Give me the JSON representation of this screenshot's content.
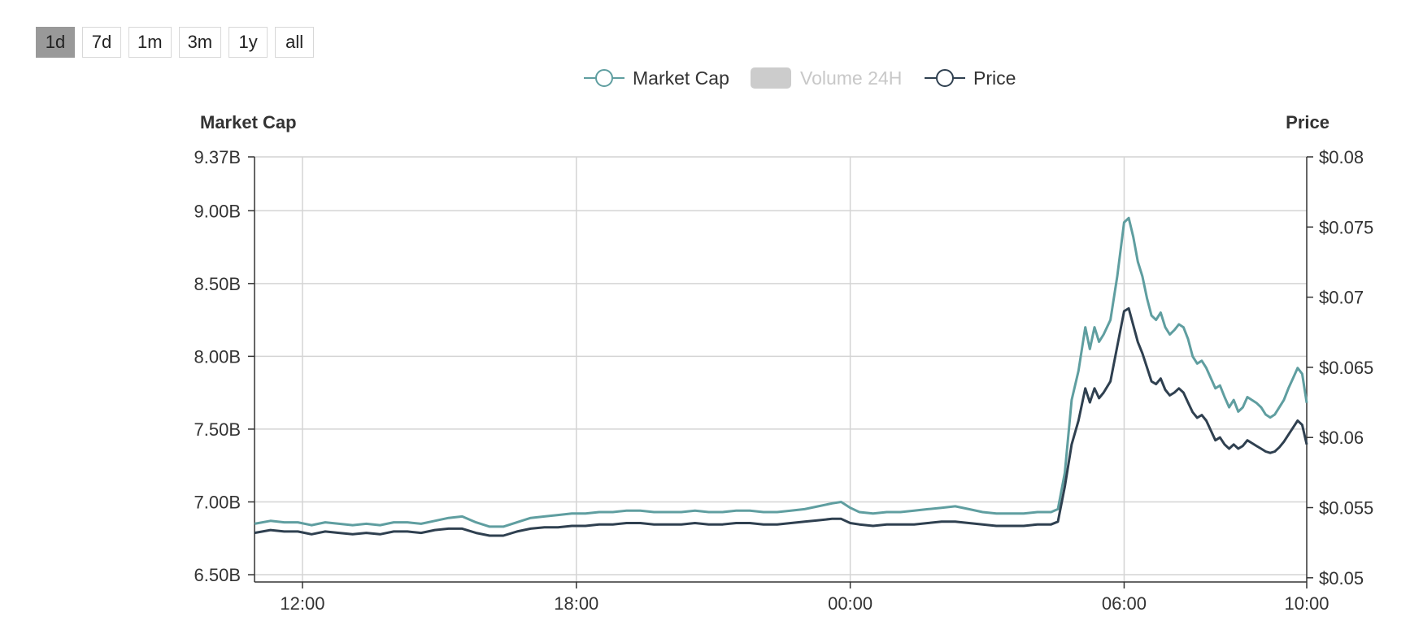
{
  "range_buttons": [
    {
      "label": "1d",
      "active": true
    },
    {
      "label": "7d",
      "active": false
    },
    {
      "label": "1m",
      "active": false
    },
    {
      "label": "3m",
      "active": false
    },
    {
      "label": "1y",
      "active": false
    },
    {
      "label": "all",
      "active": false
    }
  ],
  "chart_data": {
    "type": "line",
    "legend": {
      "placement": "top-center",
      "items": [
        {
          "name": "Market Cap",
          "color": "#5f9ea0",
          "marker": "circle",
          "enabled": true
        },
        {
          "name": "Volume 24H",
          "color": "#cccccc",
          "marker": "rect",
          "enabled": false
        },
        {
          "name": "Price",
          "color": "#2f4050",
          "marker": "circle",
          "enabled": true
        }
      ]
    },
    "y_left": {
      "title": "Market Cap",
      "ticks": [
        "9.37B",
        "9.00B",
        "8.50B",
        "8.00B",
        "7.50B",
        "7.00B",
        "6.50B"
      ],
      "tick_values": [
        9.37,
        9.0,
        8.5,
        8.0,
        7.5,
        7.0,
        6.5
      ],
      "range": [
        6.45,
        9.37
      ]
    },
    "y_right": {
      "title": "Price",
      "ticks": [
        "$0.08",
        "$0.075",
        "$0.07",
        "$0.065",
        "$0.06",
        "$0.055",
        "$0.05"
      ],
      "tick_values": [
        0.08,
        0.075,
        0.07,
        0.065,
        0.06,
        0.055,
        0.05
      ],
      "range": [
        0.0497,
        0.08
      ]
    },
    "x_axis": {
      "ticks": [
        "12:00",
        "18:00",
        "00:00",
        "06:00",
        "10:00"
      ],
      "tick_hours": [
        12,
        18,
        24,
        30,
        34
      ],
      "range_hours": [
        10.95,
        34
      ]
    },
    "grid": true,
    "series": [
      {
        "name": "Market Cap",
        "color": "#5f9ea0",
        "axis": "left",
        "points": [
          [
            10.95,
            6.85
          ],
          [
            11.3,
            6.87
          ],
          [
            11.6,
            6.86
          ],
          [
            11.9,
            6.86
          ],
          [
            12.2,
            6.84
          ],
          [
            12.5,
            6.86
          ],
          [
            12.8,
            6.85
          ],
          [
            13.1,
            6.84
          ],
          [
            13.4,
            6.85
          ],
          [
            13.7,
            6.84
          ],
          [
            14.0,
            6.86
          ],
          [
            14.3,
            6.86
          ],
          [
            14.6,
            6.85
          ],
          [
            14.9,
            6.87
          ],
          [
            15.2,
            6.89
          ],
          [
            15.5,
            6.9
          ],
          [
            15.8,
            6.86
          ],
          [
            16.1,
            6.83
          ],
          [
            16.4,
            6.83
          ],
          [
            16.7,
            6.86
          ],
          [
            17.0,
            6.89
          ],
          [
            17.3,
            6.9
          ],
          [
            17.6,
            6.91
          ],
          [
            17.9,
            6.92
          ],
          [
            18.2,
            6.92
          ],
          [
            18.5,
            6.93
          ],
          [
            18.8,
            6.93
          ],
          [
            19.1,
            6.94
          ],
          [
            19.4,
            6.94
          ],
          [
            19.7,
            6.93
          ],
          [
            20.0,
            6.93
          ],
          [
            20.3,
            6.93
          ],
          [
            20.6,
            6.94
          ],
          [
            20.9,
            6.93
          ],
          [
            21.2,
            6.93
          ],
          [
            21.5,
            6.94
          ],
          [
            21.8,
            6.94
          ],
          [
            22.1,
            6.93
          ],
          [
            22.4,
            6.93
          ],
          [
            22.7,
            6.94
          ],
          [
            23.0,
            6.95
          ],
          [
            23.3,
            6.97
          ],
          [
            23.6,
            6.99
          ],
          [
            23.8,
            7.0
          ],
          [
            24.0,
            6.96
          ],
          [
            24.2,
            6.93
          ],
          [
            24.5,
            6.92
          ],
          [
            24.8,
            6.93
          ],
          [
            25.1,
            6.93
          ],
          [
            25.4,
            6.94
          ],
          [
            25.7,
            6.95
          ],
          [
            26.0,
            6.96
          ],
          [
            26.3,
            6.97
          ],
          [
            26.6,
            6.95
          ],
          [
            26.9,
            6.93
          ],
          [
            27.2,
            6.92
          ],
          [
            27.5,
            6.92
          ],
          [
            27.8,
            6.92
          ],
          [
            28.1,
            6.93
          ],
          [
            28.4,
            6.93
          ],
          [
            28.55,
            6.95
          ],
          [
            28.7,
            7.2
          ],
          [
            28.85,
            7.7
          ],
          [
            29.0,
            7.9
          ],
          [
            29.15,
            8.2
          ],
          [
            29.25,
            8.05
          ],
          [
            29.35,
            8.2
          ],
          [
            29.45,
            8.1
          ],
          [
            29.55,
            8.15
          ],
          [
            29.7,
            8.25
          ],
          [
            29.85,
            8.55
          ],
          [
            30.0,
            8.92
          ],
          [
            30.1,
            8.95
          ],
          [
            30.2,
            8.82
          ],
          [
            30.3,
            8.65
          ],
          [
            30.4,
            8.55
          ],
          [
            30.5,
            8.4
          ],
          [
            30.6,
            8.28
          ],
          [
            30.7,
            8.25
          ],
          [
            30.8,
            8.3
          ],
          [
            30.9,
            8.2
          ],
          [
            31.0,
            8.15
          ],
          [
            31.1,
            8.18
          ],
          [
            31.2,
            8.22
          ],
          [
            31.3,
            8.2
          ],
          [
            31.4,
            8.12
          ],
          [
            31.5,
            8.0
          ],
          [
            31.6,
            7.95
          ],
          [
            31.7,
            7.97
          ],
          [
            31.8,
            7.92
          ],
          [
            31.9,
            7.85
          ],
          [
            32.0,
            7.78
          ],
          [
            32.1,
            7.8
          ],
          [
            32.2,
            7.72
          ],
          [
            32.3,
            7.65
          ],
          [
            32.4,
            7.7
          ],
          [
            32.5,
            7.62
          ],
          [
            32.6,
            7.65
          ],
          [
            32.7,
            7.72
          ],
          [
            32.8,
            7.7
          ],
          [
            32.9,
            7.68
          ],
          [
            33.0,
            7.65
          ],
          [
            33.1,
            7.6
          ],
          [
            33.2,
            7.58
          ],
          [
            33.3,
            7.6
          ],
          [
            33.4,
            7.65
          ],
          [
            33.5,
            7.7
          ],
          [
            33.6,
            7.78
          ],
          [
            33.7,
            7.85
          ],
          [
            33.8,
            7.92
          ],
          [
            33.9,
            7.88
          ],
          [
            34.0,
            7.68
          ]
        ]
      },
      {
        "name": "Price",
        "color": "#2f4050",
        "axis": "right",
        "points": [
          [
            10.95,
            0.0532
          ],
          [
            11.3,
            0.0534
          ],
          [
            11.6,
            0.0533
          ],
          [
            11.9,
            0.0533
          ],
          [
            12.2,
            0.0531
          ],
          [
            12.5,
            0.0533
          ],
          [
            12.8,
            0.0532
          ],
          [
            13.1,
            0.0531
          ],
          [
            13.4,
            0.0532
          ],
          [
            13.7,
            0.0531
          ],
          [
            14.0,
            0.0533
          ],
          [
            14.3,
            0.0533
          ],
          [
            14.6,
            0.0532
          ],
          [
            14.9,
            0.0534
          ],
          [
            15.2,
            0.0535
          ],
          [
            15.5,
            0.0535
          ],
          [
            15.8,
            0.0532
          ],
          [
            16.1,
            0.053
          ],
          [
            16.4,
            0.053
          ],
          [
            16.7,
            0.0533
          ],
          [
            17.0,
            0.0535
          ],
          [
            17.3,
            0.0536
          ],
          [
            17.6,
            0.0536
          ],
          [
            17.9,
            0.0537
          ],
          [
            18.2,
            0.0537
          ],
          [
            18.5,
            0.0538
          ],
          [
            18.8,
            0.0538
          ],
          [
            19.1,
            0.0539
          ],
          [
            19.4,
            0.0539
          ],
          [
            19.7,
            0.0538
          ],
          [
            20.0,
            0.0538
          ],
          [
            20.3,
            0.0538
          ],
          [
            20.6,
            0.0539
          ],
          [
            20.9,
            0.0538
          ],
          [
            21.2,
            0.0538
          ],
          [
            21.5,
            0.0539
          ],
          [
            21.8,
            0.0539
          ],
          [
            22.1,
            0.0538
          ],
          [
            22.4,
            0.0538
          ],
          [
            22.7,
            0.0539
          ],
          [
            23.0,
            0.054
          ],
          [
            23.3,
            0.0541
          ],
          [
            23.6,
            0.0542
          ],
          [
            23.8,
            0.0542
          ],
          [
            24.0,
            0.0539
          ],
          [
            24.2,
            0.0538
          ],
          [
            24.5,
            0.0537
          ],
          [
            24.8,
            0.0538
          ],
          [
            25.1,
            0.0538
          ],
          [
            25.4,
            0.0538
          ],
          [
            25.7,
            0.0539
          ],
          [
            26.0,
            0.054
          ],
          [
            26.3,
            0.054
          ],
          [
            26.6,
            0.0539
          ],
          [
            26.9,
            0.0538
          ],
          [
            27.2,
            0.0537
          ],
          [
            27.5,
            0.0537
          ],
          [
            27.8,
            0.0537
          ],
          [
            28.1,
            0.0538
          ],
          [
            28.4,
            0.0538
          ],
          [
            28.55,
            0.054
          ],
          [
            28.7,
            0.0565
          ],
          [
            28.85,
            0.0595
          ],
          [
            29.0,
            0.0612
          ],
          [
            29.15,
            0.0635
          ],
          [
            29.25,
            0.0625
          ],
          [
            29.35,
            0.0635
          ],
          [
            29.45,
            0.0628
          ],
          [
            29.55,
            0.0632
          ],
          [
            29.7,
            0.064
          ],
          [
            29.85,
            0.0665
          ],
          [
            30.0,
            0.069
          ],
          [
            30.1,
            0.0692
          ],
          [
            30.2,
            0.068
          ],
          [
            30.3,
            0.0668
          ],
          [
            30.4,
            0.066
          ],
          [
            30.5,
            0.065
          ],
          [
            30.6,
            0.064
          ],
          [
            30.7,
            0.0638
          ],
          [
            30.8,
            0.0642
          ],
          [
            30.9,
            0.0634
          ],
          [
            31.0,
            0.063
          ],
          [
            31.1,
            0.0632
          ],
          [
            31.2,
            0.0635
          ],
          [
            31.3,
            0.0632
          ],
          [
            31.4,
            0.0625
          ],
          [
            31.5,
            0.0618
          ],
          [
            31.6,
            0.0614
          ],
          [
            31.7,
            0.0616
          ],
          [
            31.8,
            0.0612
          ],
          [
            31.9,
            0.0605
          ],
          [
            32.0,
            0.0598
          ],
          [
            32.1,
            0.06
          ],
          [
            32.2,
            0.0595
          ],
          [
            32.3,
            0.0592
          ],
          [
            32.4,
            0.0595
          ],
          [
            32.5,
            0.0592
          ],
          [
            32.6,
            0.0594
          ],
          [
            32.7,
            0.0598
          ],
          [
            32.8,
            0.0596
          ],
          [
            32.9,
            0.0594
          ],
          [
            33.0,
            0.0592
          ],
          [
            33.1,
            0.059
          ],
          [
            33.2,
            0.0589
          ],
          [
            33.3,
            0.059
          ],
          [
            33.4,
            0.0593
          ],
          [
            33.5,
            0.0597
          ],
          [
            33.6,
            0.0602
          ],
          [
            33.7,
            0.0607
          ],
          [
            33.8,
            0.0612
          ],
          [
            33.9,
            0.0609
          ],
          [
            34.0,
            0.0595
          ]
        ]
      }
    ]
  }
}
